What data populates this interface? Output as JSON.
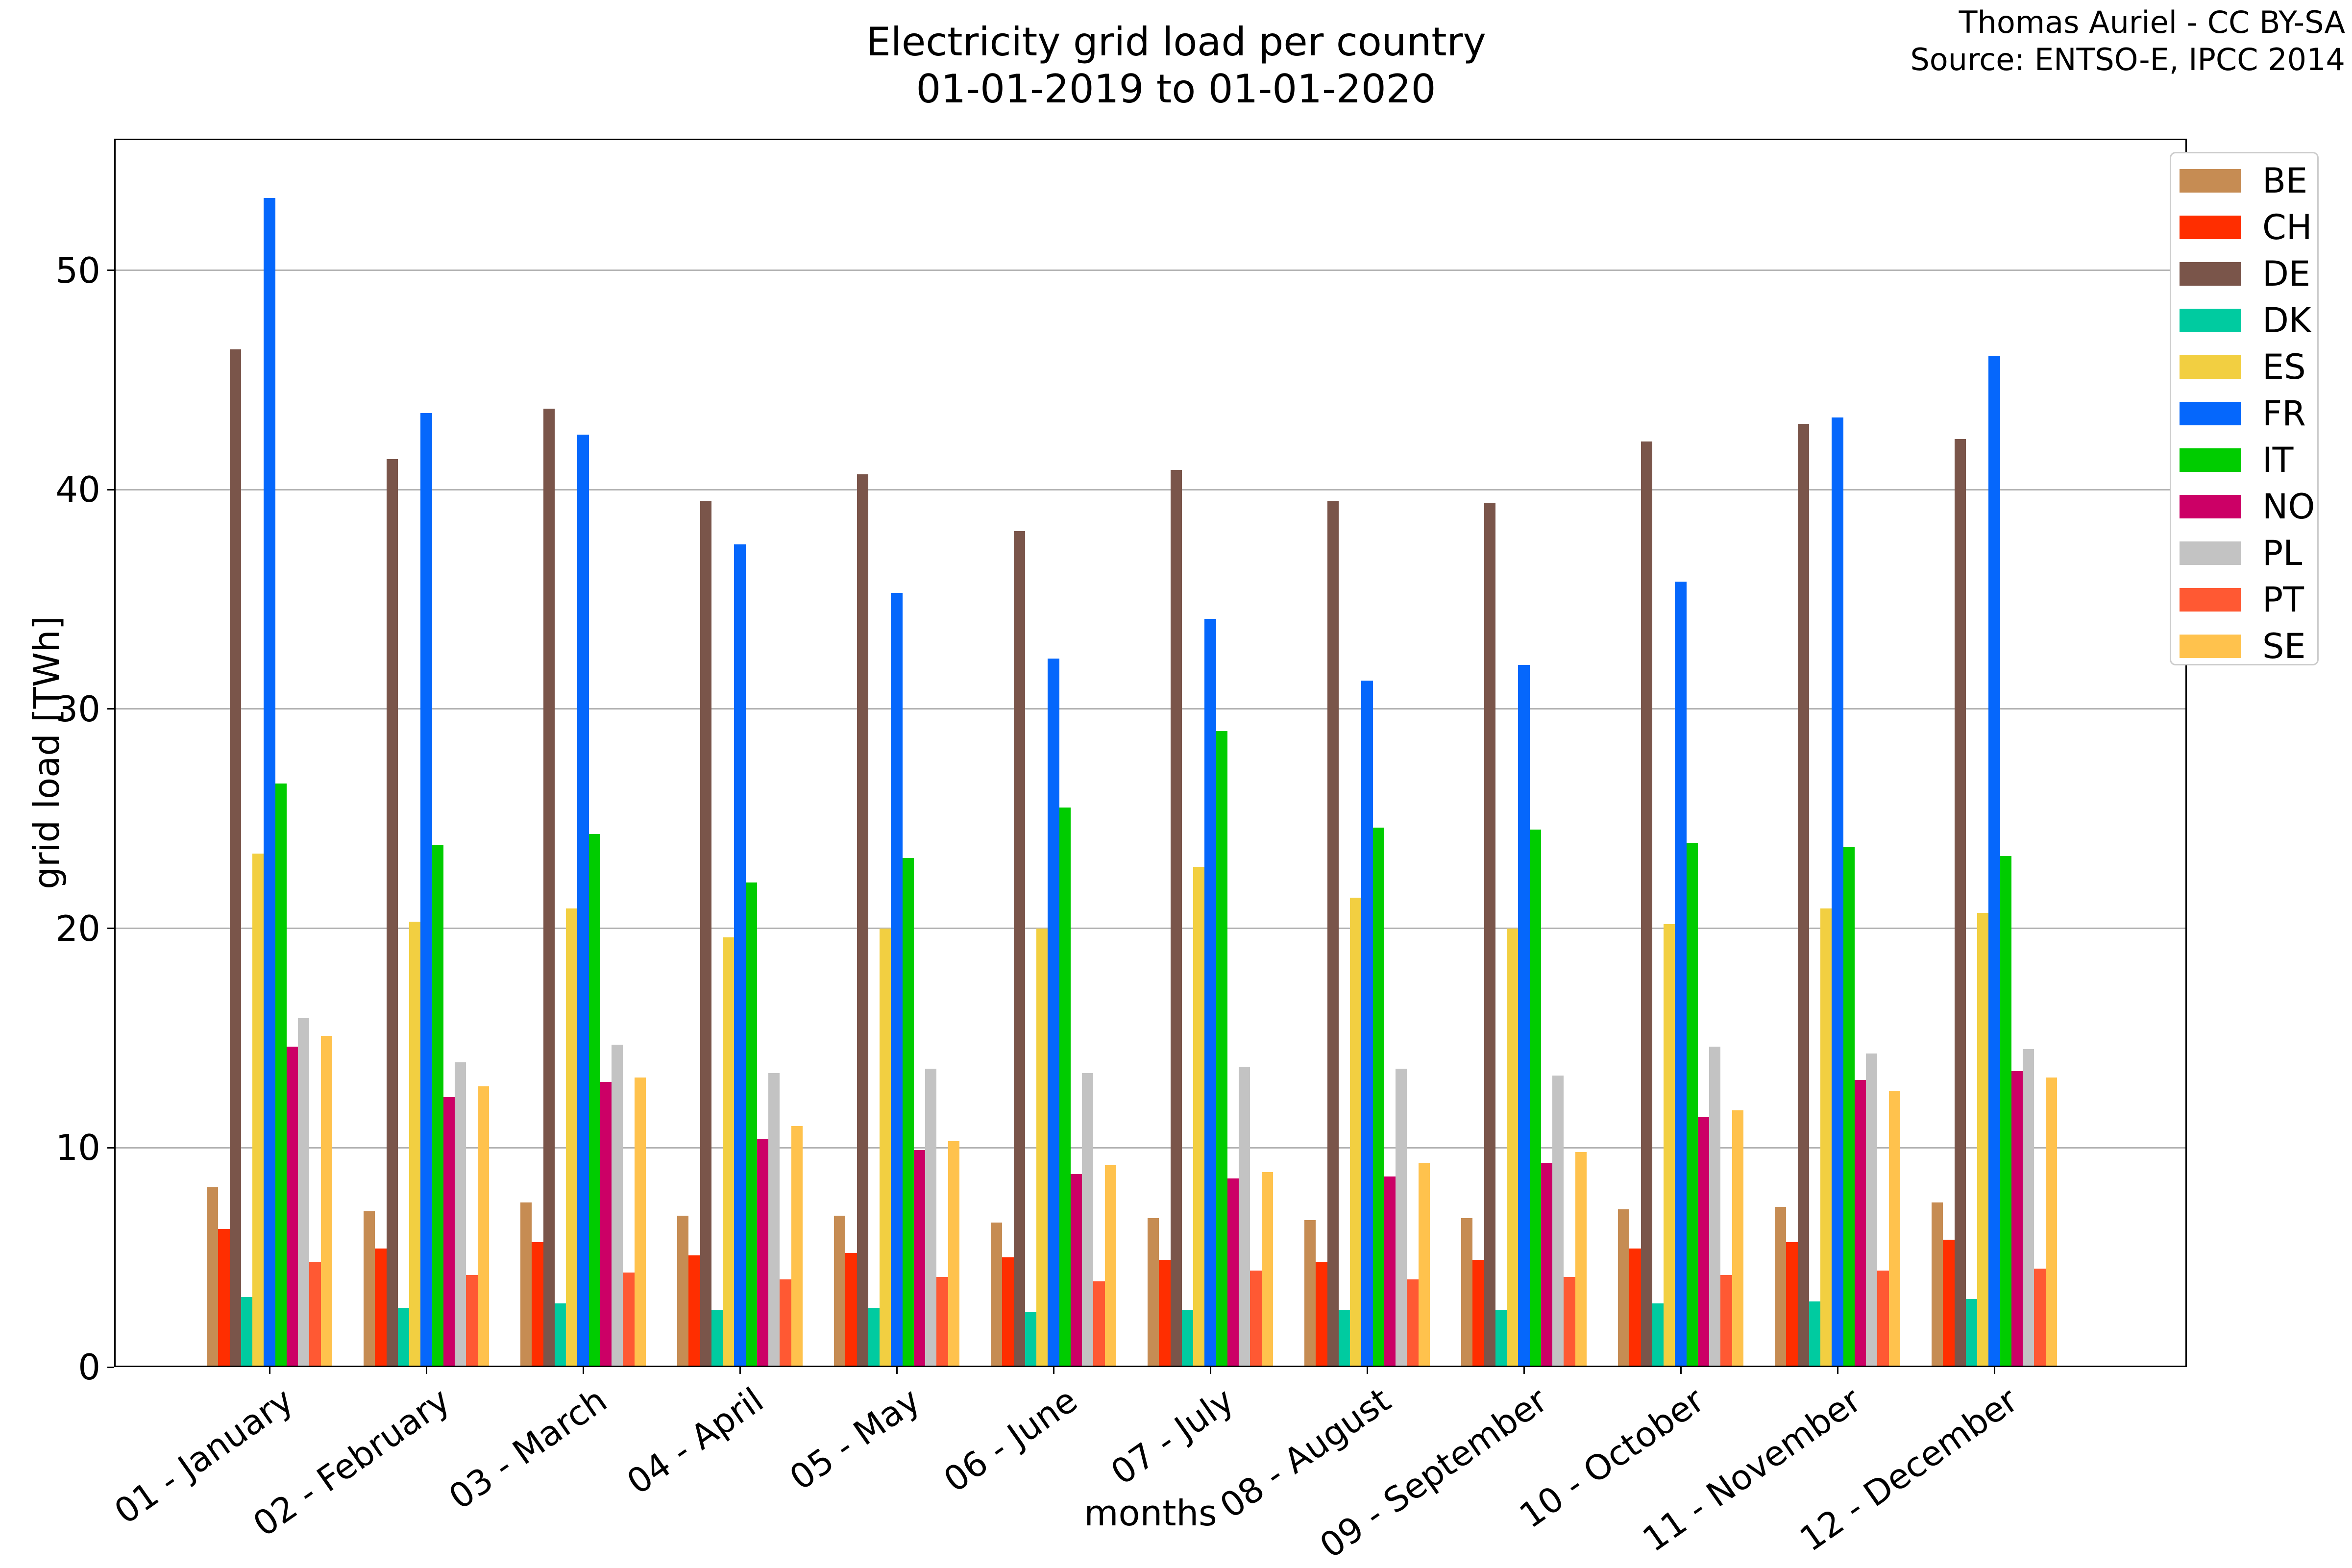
{
  "title": {
    "line1": "Electricity grid load per country",
    "line2": "01-01-2019 to 01-01-2020"
  },
  "credit": {
    "line1": "Thomas Auriel - CC BY-SA",
    "line2": "Source: ENTSO-E, IPCC 2014"
  },
  "axes": {
    "ylabel": "grid load [TWh]",
    "xlabel": "months",
    "yticks": [
      0,
      10,
      20,
      30,
      40,
      50
    ],
    "grid_color": "#b3b3b3",
    "spine_color": "#000000"
  },
  "chart_data": {
    "type": "bar",
    "title": "Electricity grid load per country 01-01-2019 to 01-01-2020",
    "xlabel": "months",
    "ylabel": "grid load [TWh]",
    "ylim": [
      0,
      56
    ],
    "grid": true,
    "legend_position": "outside-right-top",
    "categories": [
      "01 - January",
      "02 - February",
      "03 - March",
      "04 - April",
      "05 - May",
      "06 - June",
      "07 - July",
      "08 - August",
      "09 - September",
      "10 - October",
      "11 - November",
      "12 - December"
    ],
    "series": [
      {
        "name": "BE",
        "color": "#C68C53",
        "values": [
          8.2,
          7.1,
          7.5,
          6.9,
          6.9,
          6.6,
          6.8,
          6.7,
          6.8,
          7.2,
          7.3,
          7.5
        ]
      },
      {
        "name": "CH",
        "color": "#FF2E00",
        "values": [
          6.3,
          5.4,
          5.7,
          5.1,
          5.2,
          5.0,
          4.9,
          4.8,
          4.9,
          5.4,
          5.7,
          5.8
        ]
      },
      {
        "name": "DE",
        "color": "#7A554A",
        "values": [
          46.4,
          41.4,
          43.7,
          39.5,
          40.7,
          38.1,
          40.9,
          39.5,
          39.4,
          42.2,
          43.0,
          42.3
        ]
      },
      {
        "name": "DK",
        "color": "#00CBA0",
        "values": [
          3.2,
          2.7,
          2.9,
          2.6,
          2.7,
          2.5,
          2.6,
          2.6,
          2.6,
          2.9,
          3.0,
          3.1
        ]
      },
      {
        "name": "ES",
        "color": "#F2CF41",
        "values": [
          23.4,
          20.3,
          20.9,
          19.6,
          20.0,
          20.0,
          22.8,
          21.4,
          20.0,
          20.2,
          20.9,
          20.7
        ]
      },
      {
        "name": "FR",
        "color": "#0567FC",
        "values": [
          53.3,
          43.5,
          42.5,
          37.5,
          35.3,
          32.3,
          34.1,
          31.3,
          32.0,
          35.8,
          43.3,
          46.1
        ]
      },
      {
        "name": "IT",
        "color": "#00CC00",
        "values": [
          26.6,
          23.8,
          24.3,
          22.1,
          23.2,
          25.5,
          29.0,
          24.6,
          24.5,
          23.9,
          23.7,
          23.3
        ]
      },
      {
        "name": "NO",
        "color": "#CC0066",
        "values": [
          14.6,
          12.3,
          13.0,
          10.4,
          9.9,
          8.8,
          8.6,
          8.7,
          9.3,
          11.4,
          13.1,
          13.5
        ]
      },
      {
        "name": "PL",
        "color": "#C3C3C3",
        "values": [
          15.9,
          13.9,
          14.7,
          13.4,
          13.6,
          13.4,
          13.7,
          13.6,
          13.3,
          14.6,
          14.3,
          14.5
        ]
      },
      {
        "name": "PT",
        "color": "#FF5933",
        "values": [
          4.8,
          4.2,
          4.3,
          4.0,
          4.1,
          3.9,
          4.4,
          4.0,
          4.1,
          4.2,
          4.4,
          4.5
        ]
      },
      {
        "name": "SE",
        "color": "#FFC24D",
        "values": [
          15.1,
          12.8,
          13.2,
          11.0,
          10.3,
          9.2,
          8.9,
          9.3,
          9.8,
          11.7,
          12.6,
          13.2
        ]
      }
    ]
  }
}
